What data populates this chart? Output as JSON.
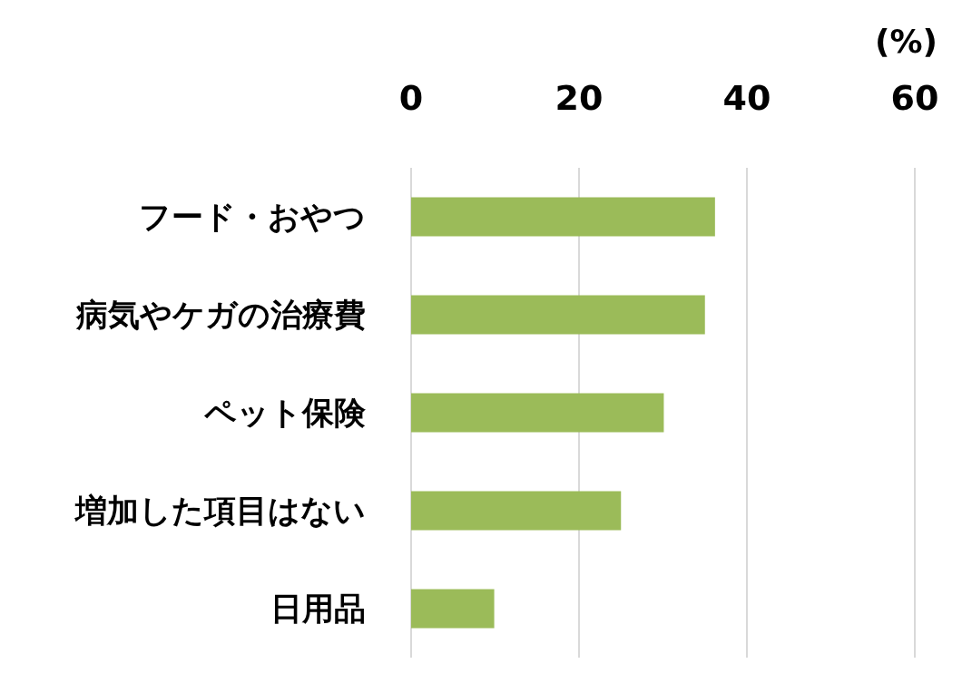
{
  "chart_data": {
    "type": "bar",
    "orientation": "horizontal",
    "xlabel": "(%)",
    "categories": [
      "フード・おやつ",
      "病気やケガの治療費",
      "ペット保険",
      "増加した項目はない",
      "日用品"
    ],
    "values": [
      36.2,
      35.0,
      30.1,
      25.0,
      9.9
    ],
    "color": "#9bbb59",
    "xlim": [
      0,
      60
    ],
    "xticks": [
      0,
      20,
      40,
      60
    ],
    "grid": "x"
  }
}
